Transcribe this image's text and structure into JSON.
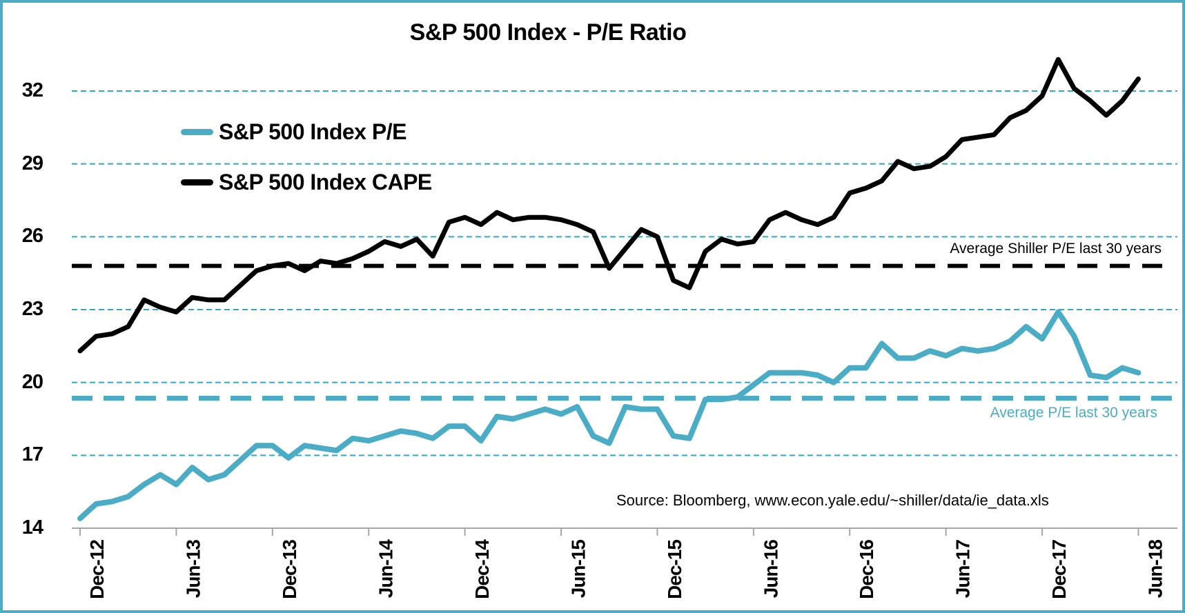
{
  "title": "S&P 500 Index - P/E Ratio",
  "source_note": "Source: Bloomberg, www.econ.yale.edu/~shiller/data/ie_data.xls",
  "colors": {
    "teal": "#4BACC6",
    "grid_teal": "#2EA7CC",
    "black": "#000000",
    "axis_gray": "#A6A6A6",
    "background": "#FFFFFF"
  },
  "chart_data": {
    "type": "line",
    "title": "S&P 500 Index - P/E Ratio",
    "x_start": "Dec-12",
    "x_step_months": 1,
    "x_tick_interval_months": 6,
    "x_tick_labels": [
      "Dec-12",
      "Jun-13",
      "Dec-13",
      "Jun-14",
      "Dec-14",
      "Jun-15",
      "Dec-15",
      "Jun-16",
      "Dec-16",
      "Jun-17",
      "Dec-17",
      "Jun-18"
    ],
    "y_ticks": [
      14,
      17,
      20,
      23,
      26,
      29,
      32
    ],
    "ylim": [
      14,
      33.5
    ],
    "grid": "horizontal dashed teal lines at each y tick",
    "legend_position": "upper-left inside plot",
    "series": [
      {
        "name": "S&P 500 Index P/E",
        "color": "#4BACC6",
        "values": [
          14.4,
          15.0,
          15.1,
          15.3,
          15.8,
          16.2,
          15.8,
          16.5,
          16.0,
          16.2,
          16.8,
          17.4,
          17.4,
          16.9,
          17.4,
          17.3,
          17.2,
          17.7,
          17.6,
          17.8,
          18.0,
          17.9,
          17.7,
          18.2,
          18.2,
          17.6,
          18.6,
          18.5,
          18.7,
          18.9,
          18.7,
          19.0,
          17.8,
          17.5,
          19.0,
          18.9,
          18.9,
          17.8,
          17.7,
          19.3,
          19.3,
          19.4,
          19.9,
          20.4,
          20.4,
          20.4,
          20.3,
          20.0,
          20.6,
          20.6,
          21.6,
          21.0,
          21.0,
          21.3,
          21.1,
          21.4,
          21.3,
          21.4,
          21.7,
          22.3,
          21.8,
          22.9,
          21.9,
          20.3,
          20.2,
          20.6,
          20.4
        ]
      },
      {
        "name": "S&P 500 Index CAPE",
        "color": "#000000",
        "values": [
          21.3,
          21.9,
          22.0,
          22.3,
          23.4,
          23.1,
          22.9,
          23.5,
          23.4,
          23.4,
          24.0,
          24.6,
          24.8,
          24.9,
          24.6,
          25.0,
          24.9,
          25.1,
          25.4,
          25.8,
          25.6,
          25.9,
          25.2,
          26.6,
          26.8,
          26.5,
          27.0,
          26.7,
          26.8,
          26.8,
          26.7,
          26.5,
          26.2,
          24.7,
          25.5,
          26.3,
          26.0,
          24.2,
          23.9,
          25.4,
          25.9,
          25.7,
          25.8,
          26.7,
          27.0,
          26.7,
          26.5,
          26.8,
          27.8,
          28.0,
          28.3,
          29.1,
          28.8,
          28.9,
          29.3,
          30.0,
          30.1,
          30.2,
          30.9,
          31.2,
          31.8,
          33.3,
          32.1,
          31.6,
          31.0,
          31.6,
          32.5
        ]
      }
    ],
    "reference_lines": [
      {
        "label": "Average Shiller P/E last 30 years",
        "value": 24.8,
        "color": "#000000",
        "style": "dashed"
      },
      {
        "label": "Average P/E last 30 years",
        "value": 19.35,
        "color": "#4BACC6",
        "style": "dashed"
      }
    ]
  }
}
